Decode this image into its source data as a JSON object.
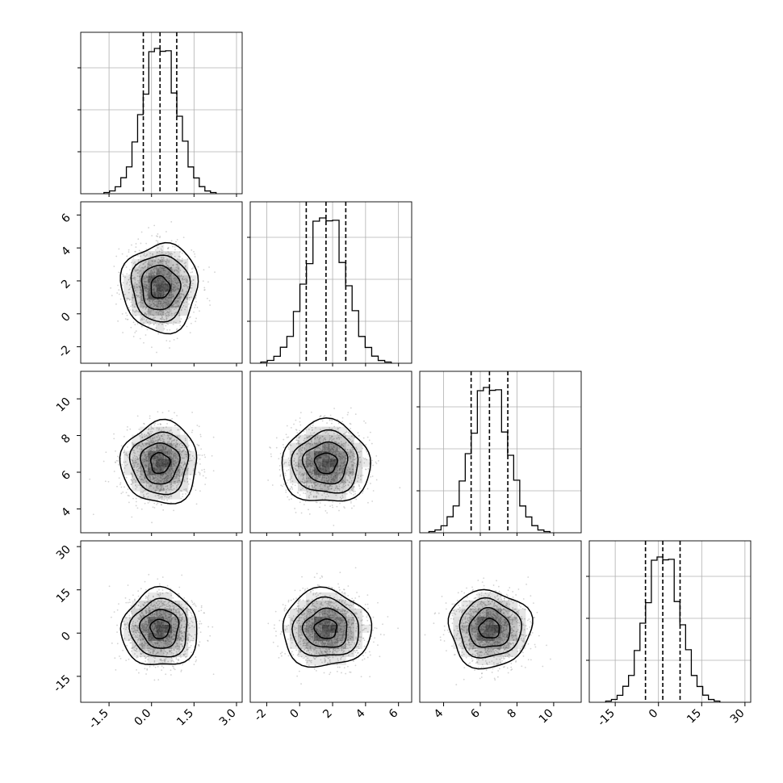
{
  "chart_data": {
    "type": "corner",
    "grid": true,
    "parameters": [
      {
        "mean": 0.3,
        "std": 0.6,
        "range": [
          -2.5,
          3.2
        ],
        "ticks": [
          "-1.5",
          "0.0",
          "1.5",
          "3.0"
        ],
        "tick_values": [
          -1.5,
          0.0,
          1.5,
          3.0
        ],
        "quantiles": [
          -0.29,
          0.3,
          0.89
        ]
      },
      {
        "mean": 1.6,
        "std": 1.2,
        "range": [
          -3.0,
          6.8
        ],
        "ticks": [
          "-2",
          "0",
          "2",
          "4",
          "6"
        ],
        "tick_values": [
          -2,
          0,
          2,
          4,
          6
        ],
        "quantiles": [
          0.4,
          1.6,
          2.8
        ]
      },
      {
        "mean": 6.5,
        "std": 1.0,
        "range": [
          2.7,
          11.5
        ],
        "ticks": [
          "4",
          "6",
          "8",
          "10"
        ],
        "tick_values": [
          4,
          6,
          8,
          10
        ],
        "quantiles": [
          5.5,
          6.5,
          7.5
        ]
      },
      {
        "mean": 1.5,
        "std": 6.0,
        "range": [
          -24,
          32
        ],
        "ticks": [
          "-15",
          "0",
          "15",
          "30"
        ],
        "tick_values": [
          -15,
          0,
          15,
          30
        ],
        "quantiles": [
          -4.5,
          1.5,
          7.5
        ]
      }
    ],
    "histogram_bins": 20,
    "contour_levels_sigma": [
      0.5,
      1.0,
      1.5,
      2.0
    ],
    "colors": {
      "line": "#000000",
      "scatter": "#9e9e9e",
      "grid": "#b0b0b0",
      "density": "#000000"
    }
  }
}
